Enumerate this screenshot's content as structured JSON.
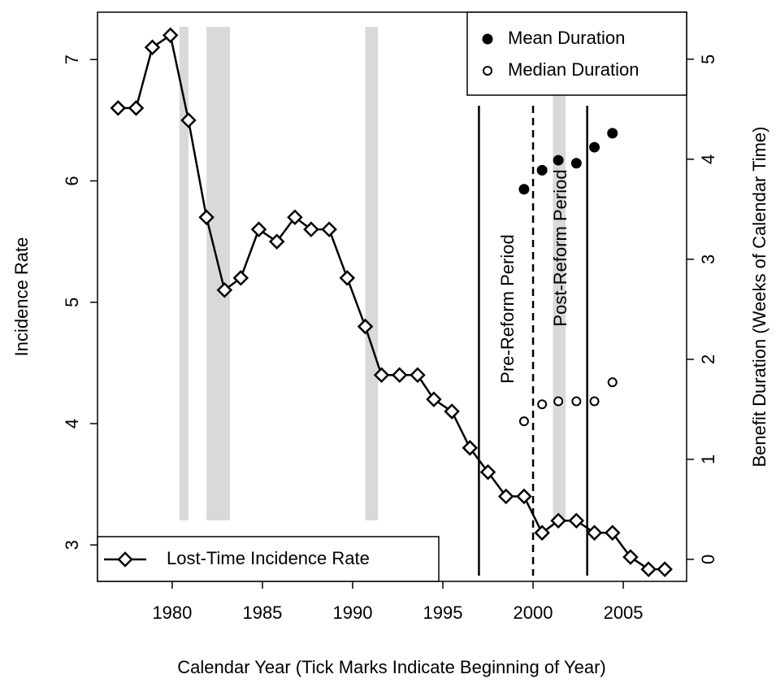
{
  "chart_data": {
    "type": "line",
    "x_label": "Calendar Year (Tick Marks Indicate Beginning of Year)",
    "y_label": "Incidence Rate",
    "y2_label": "Benefit Duration (Weeks of Calendar Time)",
    "xlim": [
      1975.86,
      2008.51
    ],
    "xticks": [
      1980,
      1985,
      1990,
      1995,
      2000,
      2005
    ],
    "ylim": [
      2.7,
      7.39
    ],
    "yticks": [
      3,
      4,
      5,
      6,
      7
    ],
    "y2lim": [
      -0.22,
      5.47
    ],
    "y2ticks": [
      0,
      1,
      2,
      3,
      4,
      5
    ],
    "shaded_periods": [
      [
        1980.4,
        1980.9
      ],
      [
        1981.9,
        1983.2
      ],
      [
        1990.7,
        1991.4
      ],
      [
        2001.1,
        2001.8
      ]
    ],
    "shade_color": "#d9d9d9",
    "reference_lines": [
      {
        "x": 1997,
        "style": "solid"
      },
      {
        "x": 2000,
        "style": "dashed"
      },
      {
        "x": 2003,
        "style": "solid"
      }
    ],
    "annotations": [
      "Pre-Reform Period",
      "Post-Reform Period"
    ],
    "series": [
      {
        "name": "Lost-Time Incidence Rate",
        "color": "#000000",
        "marker": "diamond",
        "line": true,
        "legend": "bottom left",
        "x": [
          1977.0,
          1978.0,
          1978.9,
          1979.9,
          1980.9,
          1981.9,
          1982.9,
          1983.8,
          1984.8,
          1985.8,
          1986.8,
          1987.7,
          1988.7,
          1989.7,
          1990.7,
          1991.6,
          1992.6,
          1993.6,
          1994.5,
          1995.5,
          1996.5,
          1997.5,
          1998.5,
          1999.5,
          2000.5,
          2001.4,
          2002.4,
          2003.4,
          2004.4,
          2005.4,
          2006.4,
          2007.3
        ],
        "values": [
          6.6,
          6.6,
          7.1,
          7.2,
          6.5,
          5.7,
          5.1,
          5.2,
          5.6,
          5.5,
          5.7,
          5.6,
          5.6,
          5.2,
          4.8,
          4.4,
          4.4,
          4.4,
          4.2,
          4.1,
          3.8,
          3.6,
          3.4,
          3.4,
          3.1,
          3.2,
          3.2,
          3.1,
          3.1,
          2.9,
          2.8,
          2.8
        ]
      },
      {
        "name": "Mean Duration",
        "color": "#000000",
        "marker": "filled-circle",
        "line": false,
        "axis": "y2",
        "legend": "top right",
        "x": [
          1999.5,
          2000.5,
          2001.4,
          2002.4,
          2003.4,
          2004.4
        ],
        "values": [
          3.7,
          3.89,
          3.99,
          3.96,
          4.12,
          4.26
        ]
      },
      {
        "name": "Median Duration",
        "color": "#000000",
        "marker": "open-circle",
        "line": false,
        "axis": "y2",
        "legend": "top right",
        "x": [
          1999.5,
          2000.5,
          2001.4,
          2002.4,
          2003.4,
          2004.4
        ],
        "values": [
          1.38,
          1.55,
          1.58,
          1.58,
          1.58,
          1.77
        ]
      }
    ]
  }
}
